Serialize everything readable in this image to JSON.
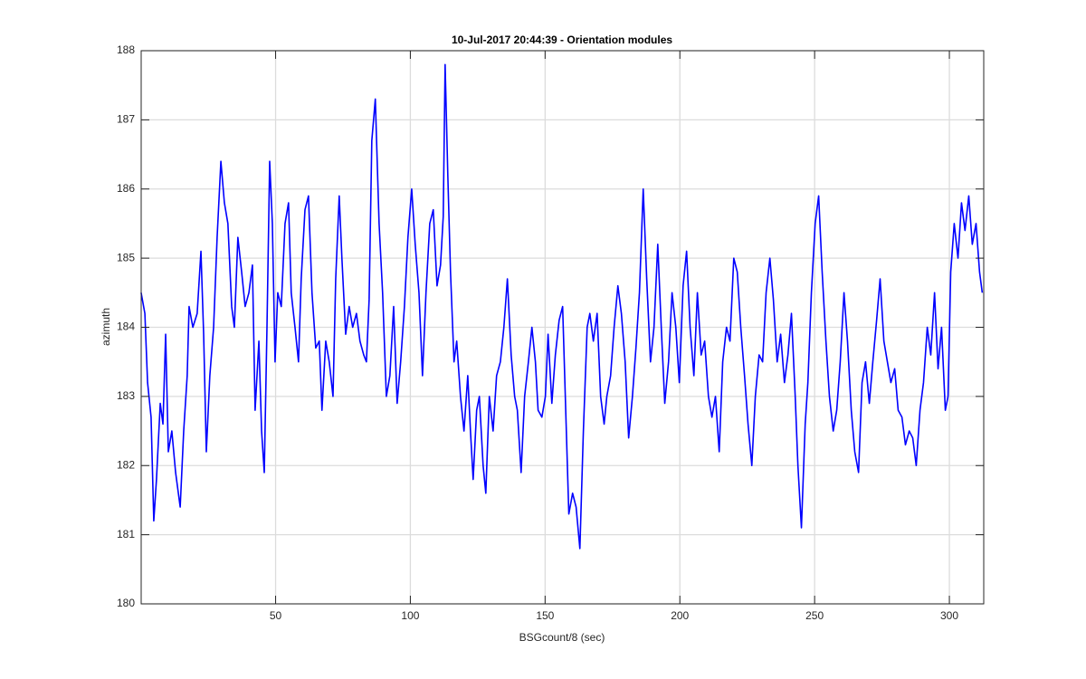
{
  "chart_data": {
    "type": "line",
    "title": "10-Jul-2017 20:44:39 - Orientation modules",
    "xlabel": "BSGcount/8 (sec)",
    "ylabel": "azimuth",
    "xlim": [
      0.125,
      312.75
    ],
    "ylim": [
      180,
      188
    ],
    "xticks": [
      50,
      100,
      150,
      200,
      250,
      300
    ],
    "yticks": [
      180,
      181,
      182,
      183,
      184,
      185,
      186,
      187,
      188
    ],
    "grid": true,
    "series": [
      {
        "color": "#0000ff",
        "x": [
          0.1,
          1.5,
          2.5,
          3.8,
          4.8,
          5.8,
          7.2,
          8.2,
          9.2,
          10.2,
          11.5,
          12.9,
          14.6,
          15.9,
          17.2,
          17.9,
          19.3,
          20.9,
          22.3,
          23.3,
          24.3,
          25.6,
          27.0,
          28.3,
          29.7,
          31.0,
          32.3,
          33.7,
          34.7,
          36.0,
          37.4,
          38.7,
          40.1,
          41.4,
          42.4,
          43.8,
          44.8,
          45.8,
          46.8,
          47.8,
          48.8,
          49.8,
          50.8,
          52.1,
          53.5,
          54.8,
          55.8,
          57.2,
          58.5,
          59.5,
          60.9,
          62.2,
          63.5,
          64.9,
          66.2,
          67.2,
          68.6,
          69.9,
          71.3,
          72.3,
          73.6,
          74.6,
          76.0,
          77.3,
          78.6,
          80.0,
          81.3,
          82.7,
          83.7,
          84.7,
          85.7,
          87.0,
          88.4,
          89.7,
          91.1,
          92.4,
          93.8,
          95.1,
          96.4,
          97.8,
          99.1,
          100.5,
          101.8,
          103.2,
          104.5,
          105.8,
          107.2,
          108.5,
          109.9,
          111.2,
          112.2,
          112.9,
          113.9,
          114.9,
          116.2,
          117.2,
          118.6,
          119.9,
          121.3,
          122.3,
          123.3,
          124.6,
          125.6,
          127.0,
          128.0,
          129.3,
          130.7,
          132.0,
          133.4,
          134.7,
          136.0,
          137.4,
          138.7,
          139.7,
          141.1,
          142.4,
          143.8,
          145.1,
          146.4,
          147.4,
          148.8,
          150.1,
          151.1,
          152.5,
          153.8,
          155.2,
          156.5,
          157.8,
          158.8,
          160.2,
          161.5,
          162.9,
          164.2,
          165.6,
          166.6,
          167.9,
          169.3,
          170.6,
          171.9,
          172.9,
          174.3,
          175.6,
          177.0,
          178.3,
          179.7,
          181.0,
          182.4,
          183.7,
          185.0,
          186.4,
          187.7,
          189.1,
          190.4,
          191.8,
          193.1,
          194.4,
          195.8,
          197.1,
          198.5,
          199.8,
          201.2,
          202.5,
          203.8,
          205.2,
          206.5,
          207.9,
          209.2,
          210.6,
          211.9,
          213.2,
          214.6,
          215.9,
          217.3,
          218.6,
          220.0,
          221.3,
          222.6,
          224.0,
          225.3,
          226.7,
          228.0,
          229.4,
          230.7,
          232.0,
          233.4,
          234.7,
          236.1,
          237.4,
          238.8,
          240.1,
          241.4,
          242.8,
          243.8,
          245.1,
          246.5,
          247.5,
          248.8,
          250.2,
          251.5,
          252.8,
          254.2,
          255.5,
          256.9,
          258.2,
          259.5,
          260.9,
          262.2,
          263.6,
          264.9,
          266.3,
          267.6,
          268.9,
          270.3,
          271.6,
          273.0,
          274.3,
          275.7,
          277.0,
          278.3,
          279.7,
          281.0,
          282.4,
          283.7,
          285.1,
          286.4,
          287.7,
          289.1,
          290.4,
          291.8,
          293.1,
          294.5,
          295.8,
          297.1,
          298.5,
          299.5,
          300.5,
          301.8,
          303.2,
          304.5,
          305.8,
          307.2,
          308.5,
          309.9,
          311.2,
          312.2
        ],
        "values": [
          184.5,
          184.2,
          183.2,
          182.7,
          181.2,
          181.8,
          182.9,
          182.6,
          183.9,
          182.2,
          182.5,
          181.9,
          181.4,
          182.5,
          183.3,
          184.3,
          184.0,
          184.2,
          185.1,
          183.9,
          182.2,
          183.3,
          184.0,
          185.3,
          186.4,
          185.8,
          185.5,
          184.3,
          184.0,
          185.3,
          184.8,
          184.3,
          184.5,
          184.9,
          182.8,
          183.8,
          182.5,
          181.9,
          184.0,
          186.4,
          185.5,
          183.5,
          184.5,
          184.3,
          185.5,
          185.8,
          184.5,
          184.0,
          183.5,
          184.7,
          185.7,
          185.9,
          184.5,
          183.7,
          183.8,
          182.8,
          183.8,
          183.5,
          183.0,
          184.7,
          185.9,
          185.0,
          183.9,
          184.3,
          184.0,
          184.2,
          183.8,
          183.6,
          183.5,
          184.4,
          186.7,
          187.3,
          185.5,
          184.5,
          183.0,
          183.3,
          184.3,
          182.9,
          183.5,
          184.3,
          185.3,
          186.0,
          185.2,
          184.5,
          183.3,
          184.5,
          185.5,
          185.7,
          184.6,
          184.9,
          185.6,
          187.8,
          186.2,
          184.8,
          183.5,
          183.8,
          183.0,
          182.5,
          183.3,
          182.5,
          181.8,
          182.8,
          183.0,
          182.0,
          181.6,
          183.0,
          182.5,
          183.3,
          183.5,
          184.0,
          184.7,
          183.6,
          183.0,
          182.8,
          181.9,
          183.0,
          183.5,
          184.0,
          183.5,
          182.8,
          182.7,
          183.0,
          183.9,
          182.9,
          183.6,
          184.1,
          184.3,
          182.6,
          181.3,
          181.6,
          181.4,
          180.8,
          182.5,
          184.0,
          184.2,
          183.8,
          184.2,
          183.0,
          182.6,
          183.0,
          183.3,
          184.0,
          184.6,
          184.2,
          183.5,
          182.4,
          183.0,
          183.7,
          184.5,
          186.0,
          184.7,
          183.5,
          184.0,
          185.2,
          184.0,
          182.9,
          183.5,
          184.5,
          184.0,
          183.2,
          184.6,
          185.1,
          184.0,
          183.3,
          184.5,
          183.6,
          183.8,
          183.0,
          182.7,
          183.0,
          182.2,
          183.5,
          184.0,
          183.8,
          185.0,
          184.8,
          184.0,
          183.3,
          182.6,
          182.0,
          183.0,
          183.6,
          183.5,
          184.5,
          185.0,
          184.4,
          183.5,
          183.9,
          183.2,
          183.6,
          184.2,
          183.0,
          182.0,
          181.1,
          182.6,
          183.2,
          184.5,
          185.5,
          185.9,
          184.8,
          183.8,
          183.0,
          182.5,
          182.8,
          183.5,
          184.5,
          183.8,
          182.8,
          182.2,
          181.9,
          183.2,
          183.5,
          182.9,
          183.5,
          184.1,
          184.7,
          183.8,
          183.5,
          183.2,
          183.4,
          182.8,
          182.7,
          182.3,
          182.5,
          182.4,
          182.0,
          182.8,
          183.2,
          184.0,
          183.6,
          184.5,
          183.4,
          184.0,
          182.8,
          183.0,
          184.8,
          185.5,
          185.0,
          185.8,
          185.4,
          185.9,
          185.2,
          185.5,
          184.8,
          184.5
        ]
      }
    ]
  }
}
